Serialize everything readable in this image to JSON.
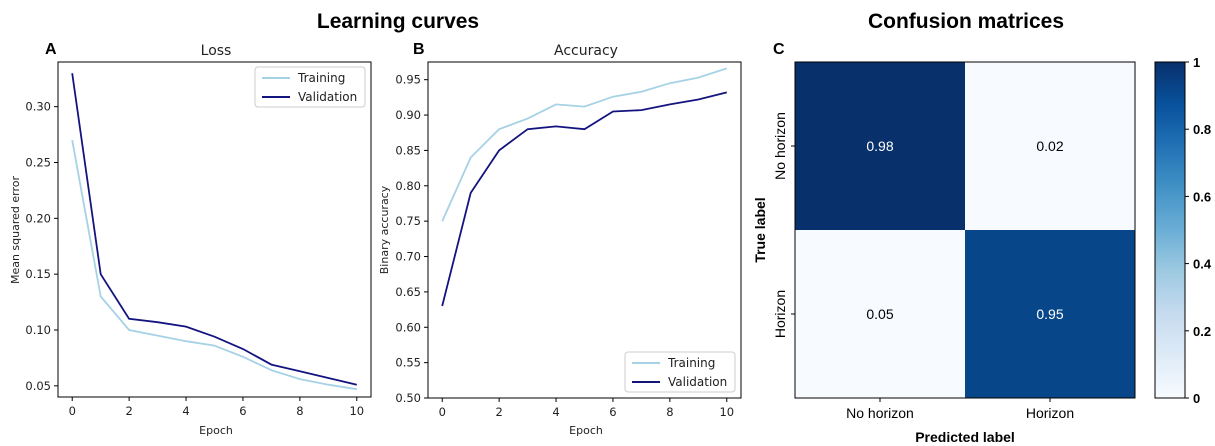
{
  "section_titles": {
    "left": "Learning curves",
    "right": "Confusion matrices"
  },
  "panel_letters": {
    "a": "A",
    "b": "B",
    "c": "C"
  },
  "colors": {
    "training": "#a6d2e6",
    "validation": "#141480",
    "cm_high": "#08306b",
    "cm_mid": "#2171b5",
    "cm_low": "#f7fbff"
  },
  "chart_data": [
    {
      "type": "line",
      "title": "Loss",
      "xlabel": "Epoch",
      "ylabel": "Mean squared error",
      "x": [
        0,
        1,
        2,
        3,
        4,
        5,
        6,
        7,
        8,
        9,
        10
      ],
      "xticks": [
        0,
        2,
        4,
        6,
        8,
        10
      ],
      "yticks": [
        0.05,
        0.1,
        0.15,
        0.2,
        0.25,
        0.3
      ],
      "ylim": [
        0.04,
        0.34
      ],
      "xlim": [
        -0.5,
        10.5
      ],
      "legend": "top-right",
      "series": [
        {
          "name": "Training",
          "values": [
            0.27,
            0.13,
            0.1,
            0.095,
            0.09,
            0.086,
            0.076,
            0.064,
            0.056,
            0.051,
            0.047
          ]
        },
        {
          "name": "Validation",
          "values": [
            0.33,
            0.15,
            0.11,
            0.107,
            0.103,
            0.094,
            0.083,
            0.069,
            0.063,
            0.057,
            0.051
          ]
        }
      ]
    },
    {
      "type": "line",
      "title": "Accuracy",
      "xlabel": "Epoch",
      "ylabel": "Binary accuracy",
      "x": [
        0,
        1,
        2,
        3,
        4,
        5,
        6,
        7,
        8,
        9,
        10
      ],
      "xticks": [
        0,
        2,
        4,
        6,
        8,
        10
      ],
      "yticks": [
        0.5,
        0.55,
        0.6,
        0.65,
        0.7,
        0.75,
        0.8,
        0.85,
        0.9,
        0.95
      ],
      "ylim": [
        0.5,
        0.975
      ],
      "xlim": [
        -0.5,
        10.5
      ],
      "legend": "bottom-right",
      "series": [
        {
          "name": "Training",
          "values": [
            0.75,
            0.84,
            0.88,
            0.895,
            0.915,
            0.912,
            0.926,
            0.933,
            0.945,
            0.953,
            0.966
          ]
        },
        {
          "name": "Validation",
          "values": [
            0.63,
            0.79,
            0.85,
            0.88,
            0.884,
            0.88,
            0.905,
            0.907,
            0.915,
            0.922,
            0.932
          ]
        }
      ]
    },
    {
      "type": "heatmap",
      "xlabel": "Predicted label",
      "ylabel": "True label",
      "x_categories": [
        "No horizon",
        "Horizon"
      ],
      "y_categories": [
        "No horizon",
        "Horizon"
      ],
      "values": [
        [
          0.98,
          0.02
        ],
        [
          0.05,
          0.95
        ]
      ],
      "labels": [
        [
          "0.98",
          "0.02"
        ],
        [
          "0.05",
          "0.95"
        ]
      ],
      "colorbar": {
        "range": [
          0,
          1
        ],
        "ticks": [
          "0",
          "0.2",
          "0.4",
          "0.6",
          "0.8",
          "1"
        ]
      }
    }
  ]
}
